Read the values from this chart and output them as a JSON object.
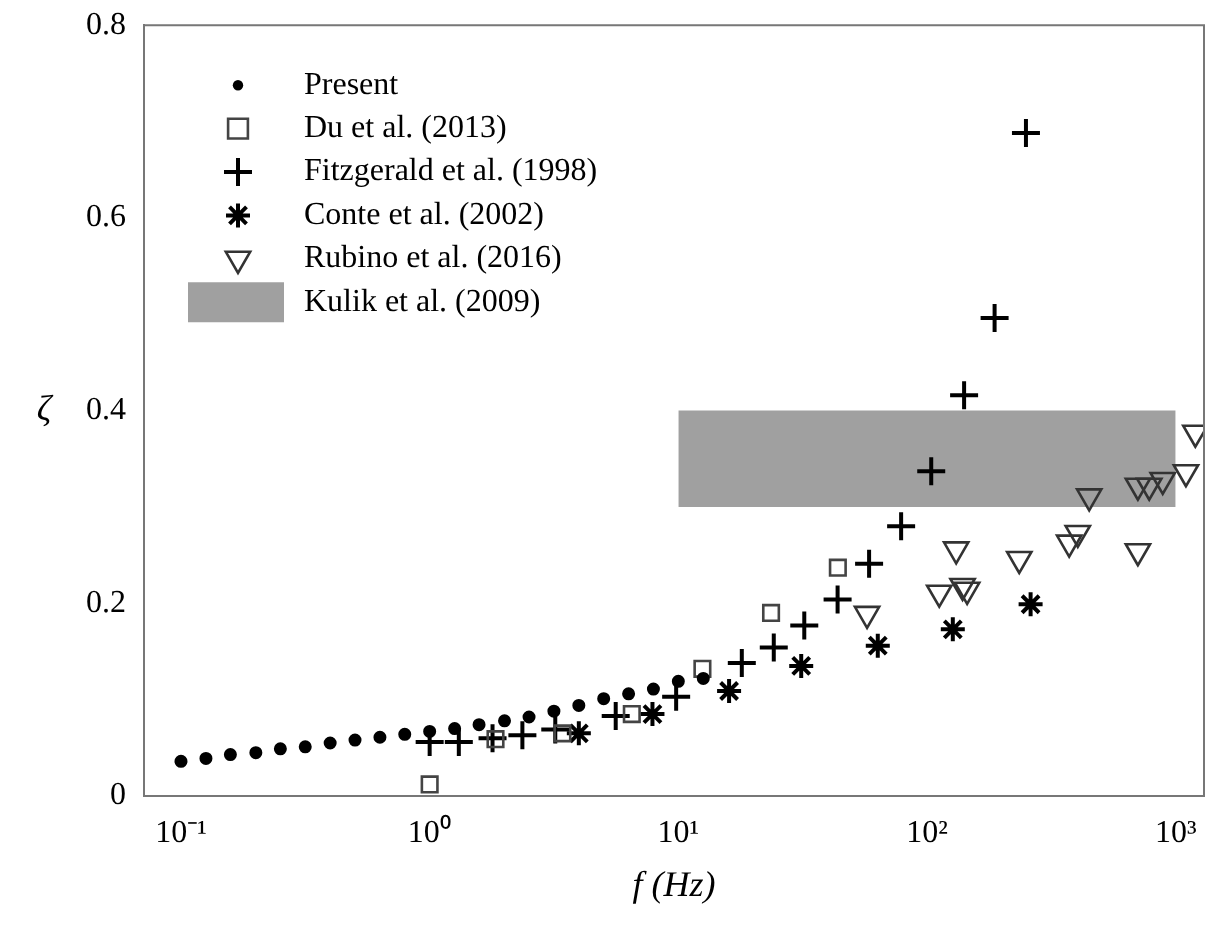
{
  "chart_data": {
    "type": "scatter",
    "xlabel": "f (Hz)",
    "ylabel": "ζ",
    "log": "x",
    "grid": false,
    "legend": "top left",
    "xlim": [
      0.071,
      1300
    ],
    "ylim": [
      0,
      0.8
    ],
    "xticks": [
      {
        "value": 0.1,
        "label": "10⁻¹"
      },
      {
        "value": 1,
        "label": "10⁰"
      },
      {
        "value": 10,
        "label": "10¹"
      },
      {
        "value": 100,
        "label": "10²"
      },
      {
        "value": 1000,
        "label": "10³"
      }
    ],
    "yticks": [
      0,
      0.2,
      0.4,
      0.6,
      0.8
    ],
    "series": [
      {
        "name": "Present",
        "color": "#000000",
        "marker": "circle",
        "x": [
          0.1,
          0.126,
          0.158,
          0.2,
          0.251,
          0.316,
          0.398,
          0.501,
          0.631,
          0.794,
          1,
          1.26,
          1.58,
          2,
          2.51,
          3.16,
          3.98,
          5.01,
          6.31,
          7.94,
          10,
          12.6
        ],
        "values": [
          0.036,
          0.039,
          0.043,
          0.045,
          0.049,
          0.051,
          0.055,
          0.058,
          0.061,
          0.064,
          0.067,
          0.07,
          0.074,
          0.078,
          0.082,
          0.088,
          0.094,
          0.101,
          0.106,
          0.111,
          0.119,
          0.122
        ]
      },
      {
        "name": "Du et al. (2013)",
        "color": "#444444",
        "marker": "square",
        "x": [
          1,
          1.84,
          3.42,
          6.5,
          12.5,
          23.6,
          43.8
        ],
        "values": [
          0.012,
          0.059,
          0.065,
          0.085,
          0.132,
          0.19,
          0.237
        ]
      },
      {
        "name": "Fitzgerald et al. (1998)",
        "color": "#000000",
        "marker": "cross",
        "x": [
          1,
          1.31,
          1.79,
          2.36,
          3.2,
          5.6,
          9.8,
          18,
          24.2,
          32.1,
          43.7,
          58.5,
          78.7,
          104,
          141,
          187,
          250
        ],
        "values": [
          0.056,
          0.056,
          0.06,
          0.063,
          0.069,
          0.083,
          0.103,
          0.138,
          0.154,
          0.177,
          0.204,
          0.241,
          0.28,
          0.337,
          0.416,
          0.496,
          0.688
        ]
      },
      {
        "name": "Conte et al. (2002)",
        "color": "#000000",
        "x": [
          3.98,
          7.87,
          16,
          31.2,
          63.4,
          127,
          261
        ],
        "values": [
          0.065,
          0.085,
          0.109,
          0.135,
          0.156,
          0.173,
          0.199
        ]
      },
      {
        "name": "Rubino et al. (2016)",
        "color": "#333333",
        "marker": "triangle",
        "x": [
          57.4,
          112,
          131,
          139,
          145,
          235,
          373,
          404,
          449,
          705,
          705,
          783,
          887,
          1100,
          1200
        ],
        "values": [
          0.189,
          0.211,
          0.256,
          0.218,
          0.214,
          0.246,
          0.263,
          0.273,
          0.311,
          0.254,
          0.322,
          0.322,
          0.328,
          0.336,
          0.377
        ]
      },
      {
        "name": "Kulik et al. (2009)",
        "color": "#a0a0a0",
        "type": "area",
        "x": [
          10,
          1000
        ],
        "values": [
          null,
          null
        ],
        "lower": [
          0.3,
          0.3
        ],
        "upper": [
          0.4,
          0.4
        ]
      }
    ]
  }
}
